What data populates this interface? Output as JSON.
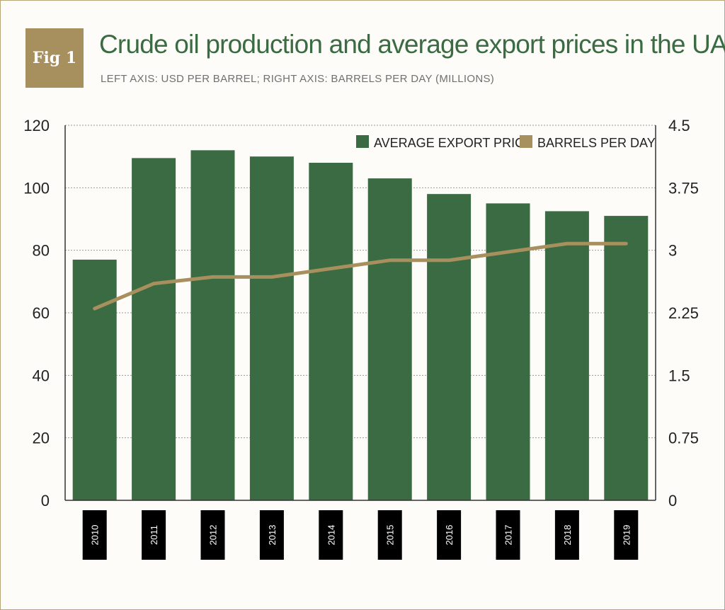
{
  "figure": {
    "badge": "Fig 1",
    "title": "Crude oil production and average export prices in the UAE",
    "subtitle": "LEFT AXIS: USD PER BARREL; RIGHT AXIS: BARRELS PER DAY (MILLIONS)"
  },
  "colors": {
    "bar": "#3a6b42",
    "line": "#a88f5e",
    "title": "#3a6b42",
    "badge": "#a88f5e"
  },
  "chart_data": {
    "type": "bar",
    "title": "Crude oil production and average export prices in the UAE",
    "categories": [
      "2010",
      "2011",
      "2012",
      "2013",
      "2014",
      "2015",
      "2016",
      "2017",
      "2018",
      "2019"
    ],
    "series": [
      {
        "name": "AVERAGE EXPORT PRICE",
        "type": "bar",
        "axis": "left",
        "values": [
          77,
          109.5,
          112,
          110,
          108,
          103,
          98,
          95,
          92.5,
          91
        ]
      },
      {
        "name": "BARRELS PER DAY",
        "type": "line",
        "axis": "right",
        "values": [
          2.3,
          2.6,
          2.68,
          2.68,
          2.78,
          2.88,
          2.88,
          2.98,
          3.08,
          3.08
        ]
      }
    ],
    "y_left": {
      "label": "USD PER BARREL",
      "lim": [
        0,
        120
      ],
      "ticks": [
        "0",
        "20",
        "40",
        "60",
        "80",
        "100",
        "120"
      ]
    },
    "y_right": {
      "label": "BARRELS PER DAY (MILLIONS)",
      "lim": [
        0,
        4.5
      ],
      "ticks": [
        "0",
        "0.75",
        "1.5",
        "2.25",
        "3",
        "3.75",
        "4.5"
      ]
    },
    "legend": {
      "position": "top-right",
      "entries": [
        "AVERAGE EXPORT PRICE",
        "BARRELS PER DAY"
      ]
    },
    "grid": true
  }
}
